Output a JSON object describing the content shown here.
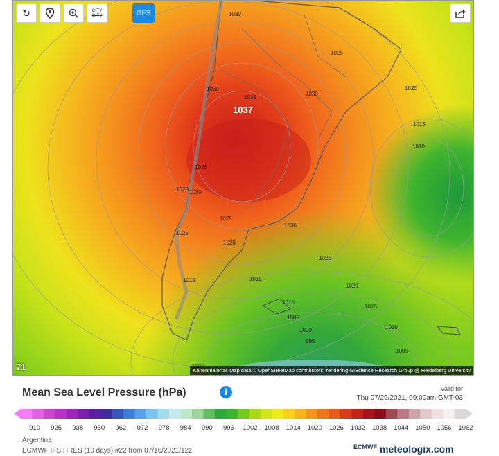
{
  "toolbar": {
    "reload_icon": "reload-icon",
    "location_icon": "location-pin-icon",
    "zoom_icon": "zoom-in-icon",
    "city_label_top": "CITY",
    "city_label_bottom": "CITY",
    "model_button": "GFS",
    "share_icon": "share-icon"
  },
  "map": {
    "hour": "71",
    "attribution": "Kartenmaterial: Map data © OpenStreetMap contributors, rendering GIScience Research Group @ Heidelberg University",
    "isobar_labels": [
      {
        "text": "1030"
      },
      {
        "text": "1025"
      },
      {
        "text": "1030"
      },
      {
        "text": "1035"
      },
      {
        "text": "1037"
      },
      {
        "text": "1030"
      },
      {
        "text": "1020"
      },
      {
        "text": "1015"
      },
      {
        "text": "1010"
      },
      {
        "text": "1025"
      },
      {
        "text": "1020"
      },
      {
        "text": "1030"
      },
      {
        "text": "1025"
      },
      {
        "text": "1030"
      },
      {
        "text": "1025"
      },
      {
        "text": "1020"
      },
      {
        "text": "1025"
      },
      {
        "text": "1015"
      },
      {
        "text": "1015"
      },
      {
        "text": "1020"
      },
      {
        "text": "1010"
      },
      {
        "text": "1015"
      },
      {
        "text": "1005"
      },
      {
        "text": "1010"
      },
      {
        "text": "1000"
      },
      {
        "text": "995"
      },
      {
        "text": "1005"
      },
      {
        "text": "1000"
      }
    ]
  },
  "legend": {
    "title": "Mean Sea Level Pressure (hPa)",
    "valid_for_label": "Valid for",
    "valid_time": "Thu 07/29/2021, 09:00am GMT-03",
    "ticks": [
      "910",
      "925",
      "938",
      "950",
      "962",
      "972",
      "978",
      "984",
      "990",
      "996",
      "1002",
      "1008",
      "1014",
      "1020",
      "1026",
      "1032",
      "1038",
      "1044",
      "1050",
      "1056",
      "1062"
    ],
    "colors": [
      "#f47cf4",
      "#e35fe3",
      "#cf45cf",
      "#b832c8",
      "#9c25b8",
      "#7a1fa8",
      "#5a1f9c",
      "#3f2b9c",
      "#3457c0",
      "#3d7fd8",
      "#55a3e6",
      "#7cc3ef",
      "#a4dcf2",
      "#c4ecef",
      "#bde8c6",
      "#9fd69a",
      "#62c060",
      "#2fa83a",
      "#3cb52e",
      "#74c91e",
      "#a8d818",
      "#d2e41a",
      "#eeea1c",
      "#f7d21c",
      "#f6b51e",
      "#f4961e",
      "#f0761c",
      "#e85a1c",
      "#d83c1a",
      "#c4221a",
      "#a8121a",
      "#8a0c1a",
      "#a04a50",
      "#b87a80",
      "#cfa4a8",
      "#e2c8ca",
      "#efe0e1",
      "#f7f0f0",
      "#d8d8d8"
    ]
  },
  "footer": {
    "region": "Argentina",
    "model_run": "ECMWF IFS HRES (10 days) #22 from 07/16/2021/12z",
    "ecmwf": "ECMWF",
    "brand": "meteologix.com"
  }
}
